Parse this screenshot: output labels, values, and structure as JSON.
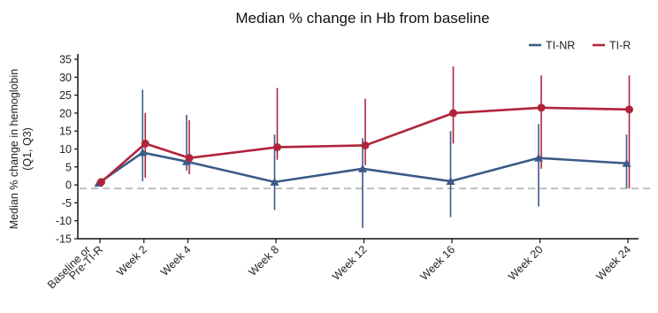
{
  "chart_data": {
    "type": "line",
    "title": "Median % change in Hb from baseline",
    "ylabel_lines": [
      "Median % change in hemoglobin",
      "(Q1, Q3)"
    ],
    "xlabel": "",
    "categories": [
      [
        "Baseline or",
        "Pre-TI-R"
      ],
      [
        "Week 2"
      ],
      [
        "Week 4"
      ],
      [
        "Week 8"
      ],
      [
        "Week 12"
      ],
      [
        "Week 16"
      ],
      [
        "Week 20"
      ],
      [
        "Week 24"
      ]
    ],
    "x": [
      0,
      2,
      4,
      8,
      12,
      16,
      20,
      24
    ],
    "ylim": [
      -15,
      35
    ],
    "yticks": [
      -15,
      -10,
      -5,
      0,
      5,
      10,
      15,
      20,
      25,
      30,
      35
    ],
    "reference_line_y": -1,
    "legend_position": "top-right",
    "series": [
      {
        "name": "TI-NR",
        "color": "#3b5a88",
        "marker": "triangle",
        "values": [
          0.5,
          9,
          6.5,
          0.8,
          4.5,
          1,
          7.5,
          6
        ],
        "q1": [
          0.5,
          1,
          4,
          -7,
          -12,
          -9,
          -6,
          -1
        ],
        "q3": [
          0.5,
          26.5,
          19.5,
          14,
          13,
          15,
          17,
          14
        ]
      },
      {
        "name": "TI-R",
        "color": "#b0243a",
        "marker": "circle",
        "values": [
          0.8,
          11.5,
          7.5,
          10.5,
          11,
          20,
          21.5,
          21
        ],
        "q1": [
          0.8,
          2,
          3,
          7,
          5.5,
          11.5,
          4.5,
          -1
        ],
        "q3": [
          0.8,
          20,
          18,
          27,
          24,
          33,
          30.5,
          30.5
        ]
      }
    ],
    "colors": {
      "axis": "#111111",
      "ref_line": "#b5b5b5",
      "pre_ti_r_label": "#b0243a"
    }
  }
}
